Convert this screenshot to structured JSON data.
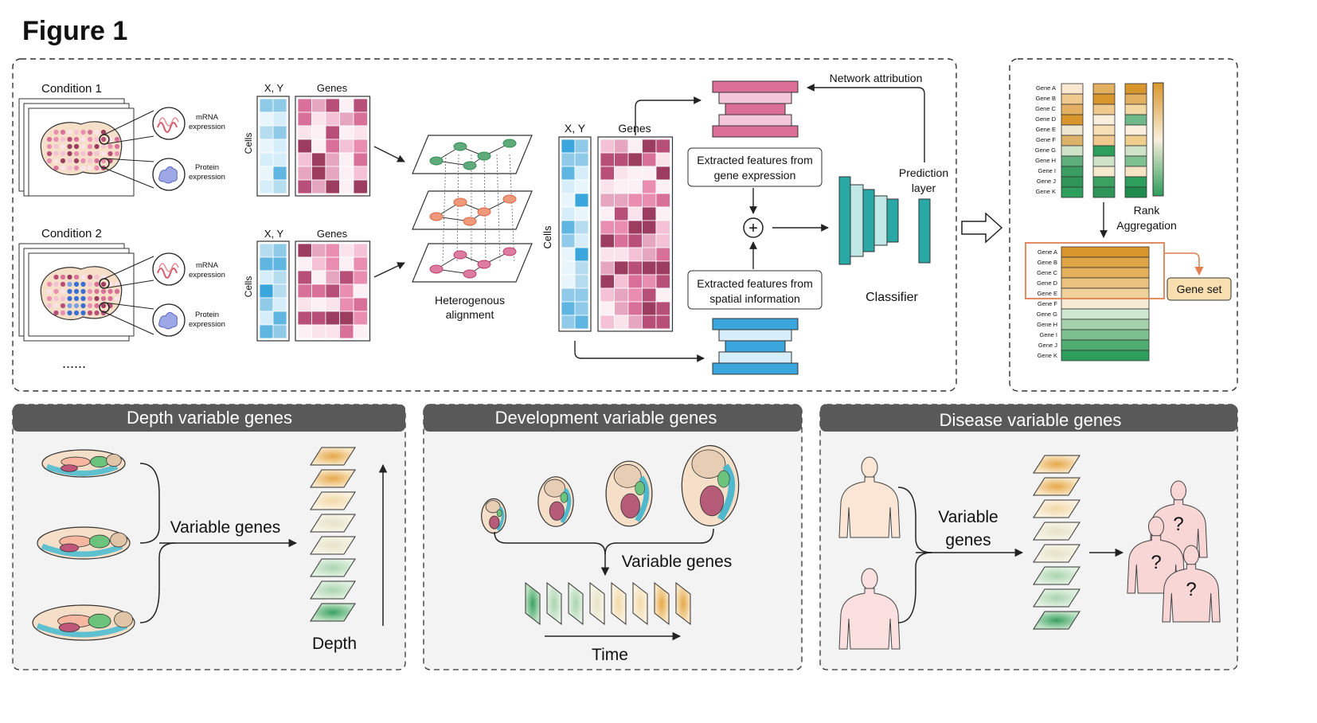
{
  "figure_title": "Figure 1",
  "conditions": [
    "Condition 1",
    "Condition 2"
  ],
  "ellipsis": "......",
  "modalities": {
    "mrna_line1": "mRNA",
    "mrna_line2": "expression",
    "protein_line1": "Protein",
    "protein_line2": "expression"
  },
  "matrix_labels": {
    "xy": "X, Y",
    "genes": "Genes",
    "cells": "Cells"
  },
  "alignment_label": [
    "Heterogenous",
    "alignment"
  ],
  "features": {
    "gene": [
      "Extracted features from",
      "gene expression"
    ],
    "spatial": [
      "Extracted features from",
      "spatial information"
    ],
    "plus": "+"
  },
  "network_attribution": "Network attribution",
  "prediction_layer": [
    "Prediction",
    "layer"
  ],
  "classifier": "Classifier",
  "genes": [
    "Gene A",
    "Gene B",
    "Gene C",
    "Gene D",
    "Gene E",
    "Gene F",
    "Gene G",
    "Gene H",
    "Gene I",
    "Gene J",
    "Gene K"
  ],
  "rank_aggregation": [
    "Rank",
    "Aggregation"
  ],
  "gene_set": "Gene set",
  "panels": {
    "depth": {
      "title": "Depth variable genes",
      "variable": "Variable genes",
      "axis": "Depth"
    },
    "development": {
      "title": "Development variable genes",
      "variable": "Variable genes",
      "axis": "Time"
    },
    "disease": {
      "title": "Disease variable genes",
      "variable": [
        "Variable",
        "genes"
      ],
      "unknown": "?"
    }
  },
  "colors": {
    "pink_dark": "#9c3d5f",
    "pink_mid": "#d9789e",
    "pink_light": "#f6d3e0",
    "blue_dark": "#3a9fd4",
    "blue_light": "#d8eef8",
    "teal": "#2aa8a6",
    "orange": "#d9962c",
    "green": "#2e9e5c",
    "header_gray": "#595959",
    "panel_bg": "#f3f3f3"
  }
}
